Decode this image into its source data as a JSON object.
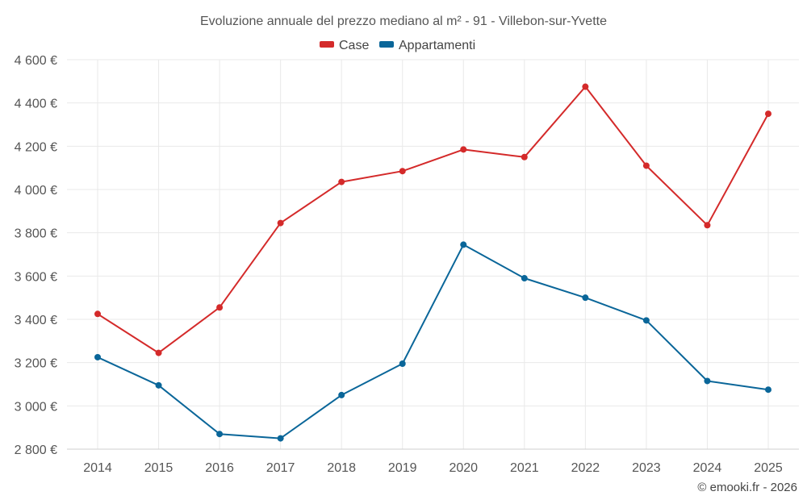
{
  "chart_data": {
    "type": "line",
    "title": "Evoluzione annuale del prezzo mediano al m² - 91 - Villebon-sur-Yvette",
    "categories": [
      "2014",
      "2015",
      "2016",
      "2017",
      "2018",
      "2019",
      "2020",
      "2021",
      "2022",
      "2023",
      "2024",
      "2025"
    ],
    "series": [
      {
        "name": "Case",
        "color": "#d42a2a",
        "values": [
          3425,
          3245,
          3455,
          3845,
          4035,
          4085,
          4185,
          4150,
          4475,
          4110,
          3835,
          4350
        ]
      },
      {
        "name": "Appartamenti",
        "color": "#0a6699",
        "values": [
          3225,
          3095,
          2870,
          2850,
          3050,
          3195,
          3745,
          3590,
          3500,
          3395,
          3115,
          3075
        ]
      }
    ],
    "ylim": [
      2800,
      4600
    ],
    "yticks": [
      2800,
      3000,
      3200,
      3400,
      3600,
      3800,
      4000,
      4200,
      4400,
      4600
    ],
    "ytick_labels": [
      "2 800 €",
      "3 000 €",
      "3 200 €",
      "3 400 €",
      "3 600 €",
      "3 800 €",
      "4 000 €",
      "4 200 €",
      "4 400 €",
      "4 600 €"
    ],
    "xlabel": "",
    "ylabel": "",
    "grid": true,
    "legend_position": "top-center"
  },
  "credit": "© emooki.fr - 2026"
}
